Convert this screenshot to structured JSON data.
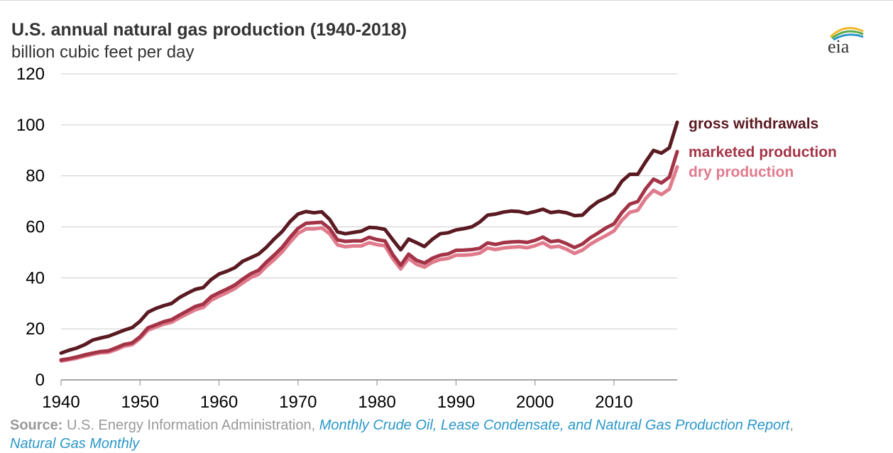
{
  "header": {
    "title": "U.S. annual natural gas production (1940-2018)",
    "subtitle": "billion cubic feet per day",
    "logo_text": "eia"
  },
  "source": {
    "label": "Source:",
    "text": " U.S. Energy Information Administration, ",
    "link1": "Monthly Crude Oil, Lease Condensate, and Natural Gas Production Report",
    "sep": ",",
    "link2": "Natural Gas Monthly"
  },
  "chart_data": {
    "type": "line",
    "title": "U.S. annual natural gas production (1940-2018)",
    "ylabel": "billion cubic feet per day",
    "xlabel": "",
    "xlim": [
      1940,
      2018
    ],
    "ylim": [
      0,
      120
    ],
    "yticks": [
      0,
      20,
      40,
      60,
      80,
      100,
      120
    ],
    "xticks": [
      1940,
      1950,
      1960,
      1970,
      1980,
      1990,
      2000,
      2010
    ],
    "grid": true,
    "legend": "direct labels at right end of lines",
    "colors": {
      "gross withdrawals": "#5a1a22",
      "marketed production": "#a33447",
      "dry production": "#e07b8c"
    },
    "x": [
      1940,
      1941,
      1942,
      1943,
      1944,
      1945,
      1946,
      1947,
      1948,
      1949,
      1950,
      1951,
      1952,
      1953,
      1954,
      1955,
      1956,
      1957,
      1958,
      1959,
      1960,
      1961,
      1962,
      1963,
      1964,
      1965,
      1966,
      1967,
      1968,
      1969,
      1970,
      1971,
      1972,
      1973,
      1974,
      1975,
      1976,
      1977,
      1978,
      1979,
      1980,
      1981,
      1982,
      1983,
      1984,
      1985,
      1986,
      1987,
      1988,
      1989,
      1990,
      1991,
      1992,
      1993,
      1994,
      1995,
      1996,
      1997,
      1998,
      1999,
      2000,
      2001,
      2002,
      2003,
      2004,
      2005,
      2006,
      2007,
      2008,
      2009,
      2010,
      2011,
      2012,
      2013,
      2014,
      2015,
      2016,
      2017,
      2018
    ],
    "series": [
      {
        "name": "gross withdrawals",
        "values": [
          10.5,
          11.6,
          12.5,
          13.8,
          15.6,
          16.4,
          17.1,
          18.3,
          19.5,
          20.5,
          23.0,
          26.5,
          28.0,
          29.1,
          30.0,
          32.3,
          34.0,
          35.5,
          36.2,
          39.3,
          41.5,
          42.6,
          44.0,
          46.5,
          47.9,
          49.3,
          52.0,
          55.3,
          58.2,
          62.1,
          65.0,
          66.0,
          65.5,
          65.9,
          62.9,
          58.0,
          57.3,
          57.8,
          58.3,
          59.8,
          59.6,
          59.0,
          54.9,
          51.0,
          55.2,
          53.8,
          52.3,
          55.1,
          57.3,
          57.7,
          58.8,
          59.3,
          60.0,
          61.9,
          64.6,
          65.0,
          65.8,
          66.2,
          66.0,
          65.3,
          66.0,
          66.9,
          65.6,
          66.0,
          65.5,
          64.4,
          64.6,
          67.6,
          69.9,
          71.3,
          73.2,
          77.9,
          80.6,
          80.6,
          85.5,
          90.0,
          88.9,
          91.0,
          101.0
        ]
      },
      {
        "name": "marketed production",
        "values": [
          7.8,
          8.3,
          9.0,
          9.8,
          10.5,
          11.1,
          11.4,
          12.6,
          13.9,
          14.5,
          16.9,
          20.4,
          21.6,
          22.8,
          23.6,
          25.4,
          27.1,
          28.8,
          29.7,
          32.6,
          34.2,
          35.6,
          37.2,
          39.5,
          41.6,
          43.0,
          46.2,
          49.0,
          52.0,
          55.9,
          59.4,
          61.4,
          61.6,
          61.8,
          59.3,
          54.9,
          54.3,
          54.5,
          54.5,
          55.9,
          55.0,
          54.5,
          49.1,
          44.9,
          49.3,
          46.9,
          45.8,
          47.7,
          48.9,
          49.4,
          50.8,
          50.9,
          51.1,
          51.6,
          53.7,
          53.1,
          53.8,
          54.1,
          54.2,
          53.9,
          54.7,
          56.0,
          54.2,
          54.6,
          53.4,
          51.9,
          53.3,
          55.7,
          57.6,
          59.6,
          61.2,
          65.6,
          68.9,
          69.9,
          74.9,
          78.7,
          77.2,
          79.5,
          89.5
        ]
      },
      {
        "name": "dry production",
        "values": [
          7.4,
          7.9,
          8.5,
          9.3,
          10.0,
          10.6,
          10.8,
          11.9,
          13.2,
          13.8,
          16.2,
          19.5,
          20.7,
          21.8,
          22.6,
          24.3,
          25.9,
          27.5,
          28.4,
          31.2,
          32.8,
          34.2,
          35.8,
          38.0,
          40.1,
          41.4,
          44.5,
          47.2,
          50.2,
          54.0,
          57.4,
          59.2,
          59.2,
          59.6,
          57.3,
          52.9,
          52.2,
          52.5,
          52.5,
          53.8,
          53.0,
          52.6,
          47.5,
          43.5,
          47.6,
          45.3,
          44.2,
          46.1,
          47.2,
          47.6,
          48.9,
          48.9,
          49.1,
          49.7,
          51.7,
          51.1,
          51.7,
          52.0,
          52.2,
          51.8,
          52.6,
          53.8,
          52.0,
          52.4,
          51.2,
          49.6,
          50.9,
          53.2,
          55.0,
          56.6,
          58.4,
          62.6,
          65.7,
          66.5,
          71.1,
          74.3,
          72.7,
          74.8,
          83.5
        ]
      }
    ],
    "labels": {
      "gross": "gross withdrawals",
      "marketed": "marketed production",
      "dry": "dry production"
    }
  }
}
